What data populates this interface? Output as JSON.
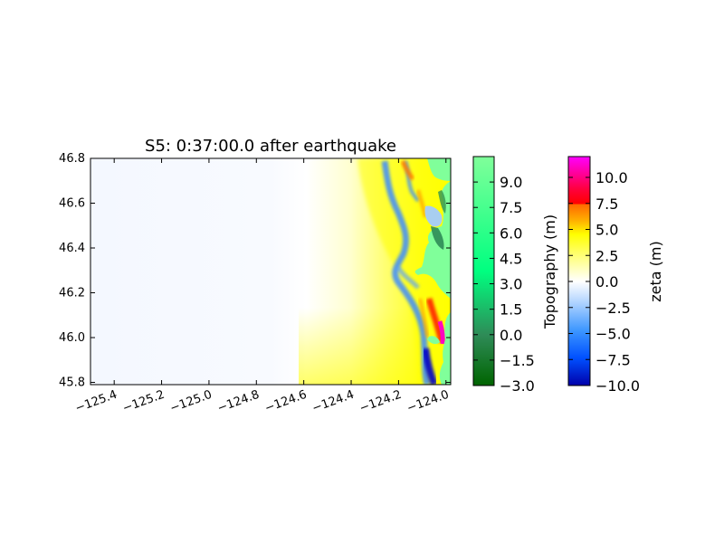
{
  "chart_data": {
    "type": "heatmap",
    "title": "S5: 0:37:00.0 after earthquake",
    "xlabel": "",
    "ylabel": "",
    "xlim": [
      -125.5,
      -123.98
    ],
    "ylim": [
      45.79,
      46.8
    ],
    "x_ticks": [
      -125.4,
      -125.2,
      -125.0,
      -124.8,
      -124.6,
      -124.4,
      -124.2,
      -124.0
    ],
    "x_tick_labels": [
      "−125.4",
      "−125.2",
      "−125.0",
      "−124.8",
      "−124.6",
      "−124.4",
      "−124.2",
      "−124.0"
    ],
    "y_ticks": [
      45.8,
      46.0,
      46.2,
      46.4,
      46.6,
      46.8
    ],
    "y_tick_labels": [
      "45.8",
      "46.0",
      "46.2",
      "46.4",
      "46.6",
      "46.8"
    ],
    "grid": false,
    "colorbars": [
      {
        "label": "Topography (m)",
        "range": [
          -3.0,
          10.5
        ],
        "ticks": [
          9.0,
          7.5,
          6.0,
          4.5,
          3.0,
          1.5,
          0.0,
          -1.5,
          -3.0
        ],
        "tick_labels": [
          "9.0",
          "7.5",
          "6.0",
          "4.5",
          "3.0",
          "1.5",
          "0.0",
          "−1.5",
          "−3.0"
        ],
        "colors": [
          "#006400",
          "#2e8b57",
          "#00ff80",
          "#80ff9a"
        ]
      },
      {
        "label": "zeta (m)",
        "range": [
          -10.0,
          12.0
        ],
        "ticks": [
          10.0,
          7.5,
          5.0,
          2.5,
          0.0,
          -2.5,
          -5.0,
          -7.5,
          -10.0
        ],
        "tick_labels": [
          "10.0",
          "7.5",
          "5.0",
          "2.5",
          "0.0",
          "−2.5",
          "−5.0",
          "−7.5",
          "−10.0"
        ],
        "colors": [
          "#0000aa",
          "#1e7cff",
          "#ffffff",
          "#ffff00",
          "#ff6a00",
          "#ff0000",
          "#ff00aa"
        ]
      }
    ]
  }
}
